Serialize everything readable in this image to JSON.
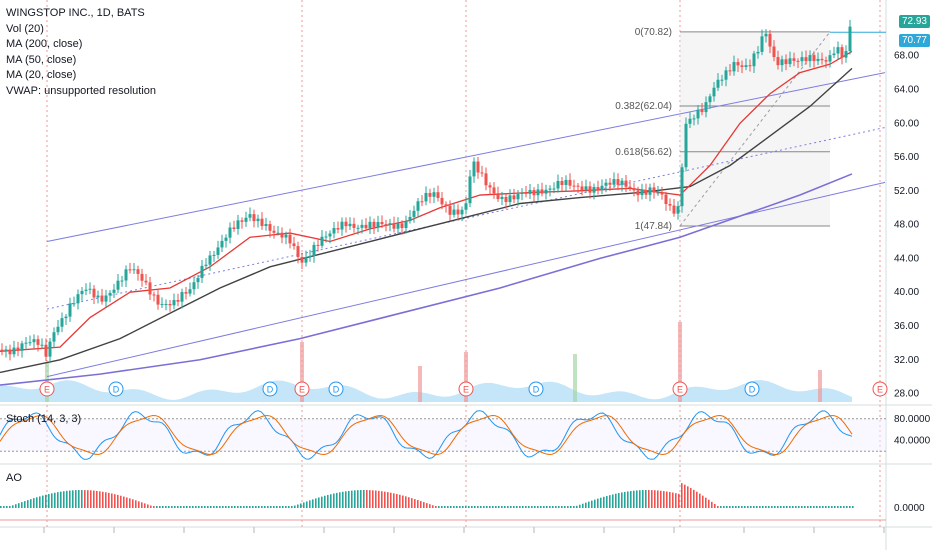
{
  "legend": {
    "symbol": "WINGSTOP INC., 1D, BATS",
    "vol": "Vol (20)",
    "ma200": "MA (200, close)",
    "ma50": "MA (50, close)",
    "ma20": "MA (20, close)",
    "vwap": "VWAP: unsupported resolution"
  },
  "stoch_label": "Stoch (14, 3, 3)",
  "ao_label": "AO",
  "price_tags": {
    "last": "72.93",
    "line": "70.77"
  },
  "colors": {
    "up": "#26a69a",
    "down": "#ef5350",
    "ma20": "#e53935",
    "ma50": "#424242",
    "ma200": "#7b6fd6",
    "channel": "#7d7de0",
    "volume": "#9fd4f3",
    "last_tag": "#26a69a",
    "line_tag": "#2ea8d8"
  },
  "chart_data": {
    "type": "candlestick",
    "price_axis": {
      "ticks": [
        "28.00",
        "32.00",
        "36.00",
        "40.00",
        "44.00",
        "48.00",
        "52.00",
        "56.00",
        "60.00",
        "64.00",
        "68.00"
      ],
      "range": [
        27,
        74
      ]
    },
    "stoch_axis": {
      "ticks": [
        "80.0000",
        "40.0000"
      ]
    },
    "ao_axis": {
      "ticks": [
        "0.0000"
      ]
    },
    "fib_levels": [
      {
        "label": "0(70.82)",
        "value": 70.82
      },
      {
        "label": "0.382(62.04)",
        "value": 62.04
      },
      {
        "label": "0.618(56.62)",
        "value": 56.62
      },
      {
        "label": "1(47.84)",
        "value": 47.84
      }
    ],
    "events": [
      {
        "label": "E",
        "type": "earnings"
      },
      {
        "label": "D",
        "type": "dividend"
      },
      {
        "label": "D",
        "type": "dividend"
      },
      {
        "label": "E",
        "type": "earnings"
      },
      {
        "label": "D",
        "type": "dividend"
      },
      {
        "label": "E",
        "type": "earnings"
      },
      {
        "label": "D",
        "type": "dividend"
      },
      {
        "label": "E",
        "type": "earnings"
      },
      {
        "label": "D",
        "type": "dividend"
      },
      {
        "label": "E",
        "type": "earnings"
      }
    ],
    "price_path": [
      [
        0,
        33.2
      ],
      [
        12,
        33.5
      ],
      [
        25,
        34.0
      ],
      [
        38,
        33.6
      ],
      [
        46,
        32.5
      ],
      [
        55,
        36.0
      ],
      [
        70,
        38.5
      ],
      [
        85,
        40.0
      ],
      [
        100,
        39.2
      ],
      [
        115,
        41.0
      ],
      [
        130,
        42.5
      ],
      [
        145,
        41.0
      ],
      [
        160,
        39.0
      ],
      [
        175,
        38.5
      ],
      [
        190,
        40.0
      ],
      [
        205,
        44.0
      ],
      [
        220,
        45.5
      ],
      [
        235,
        47.5
      ],
      [
        250,
        49.5
      ],
      [
        262,
        48.5
      ],
      [
        275,
        46.5
      ],
      [
        290,
        46.0
      ],
      [
        302,
        44.0
      ],
      [
        315,
        45.5
      ],
      [
        330,
        46.5
      ],
      [
        345,
        48.5
      ],
      [
        360,
        48.0
      ],
      [
        375,
        47.5
      ],
      [
        390,
        48.0
      ],
      [
        405,
        48.5
      ],
      [
        420,
        50.5
      ],
      [
        435,
        51.5
      ],
      [
        450,
        50.0
      ],
      [
        465,
        49.5
      ],
      [
        472,
        55.0
      ],
      [
        485,
        53.0
      ],
      [
        500,
        51.5
      ],
      [
        515,
        51.0
      ],
      [
        530,
        51.5
      ],
      [
        545,
        52.5
      ],
      [
        560,
        53.0
      ],
      [
        575,
        52.0
      ],
      [
        590,
        52.5
      ],
      [
        605,
        53.0
      ],
      [
        620,
        52.5
      ],
      [
        635,
        52.0
      ],
      [
        650,
        52.5
      ],
      [
        660,
        51.5
      ],
      [
        672,
        49.0
      ],
      [
        680,
        50.0
      ],
      [
        684,
        60.0
      ],
      [
        695,
        61.5
      ],
      [
        705,
        62.0
      ],
      [
        715,
        64.0
      ],
      [
        725,
        65.5
      ],
      [
        735,
        67.5
      ],
      [
        748,
        67.0
      ],
      [
        758,
        68.5
      ],
      [
        765,
        70.5
      ],
      [
        775,
        67.0
      ],
      [
        790,
        68.0
      ],
      [
        805,
        67.5
      ],
      [
        818,
        67.0
      ],
      [
        828,
        67.5
      ],
      [
        836,
        69.5
      ],
      [
        845,
        68.0
      ],
      [
        852,
        72.9
      ]
    ],
    "ma20": [
      [
        0,
        33.0
      ],
      [
        60,
        33.5
      ],
      [
        90,
        37.0
      ],
      [
        130,
        40.0
      ],
      [
        170,
        40.5
      ],
      [
        210,
        43.0
      ],
      [
        250,
        46.5
      ],
      [
        290,
        47.0
      ],
      [
        330,
        46.0
      ],
      [
        370,
        47.5
      ],
      [
        410,
        48.5
      ],
      [
        440,
        50.0
      ],
      [
        480,
        51.5
      ],
      [
        530,
        51.8
      ],
      [
        580,
        52.0
      ],
      [
        630,
        52.3
      ],
      [
        680,
        51.5
      ],
      [
        710,
        55.0
      ],
      [
        740,
        60.0
      ],
      [
        770,
        63.5
      ],
      [
        800,
        66.0
      ],
      [
        830,
        67.0
      ],
      [
        852,
        68.5
      ]
    ],
    "ma50": [
      [
        0,
        30.5
      ],
      [
        60,
        32.0
      ],
      [
        120,
        34.5
      ],
      [
        170,
        37.5
      ],
      [
        220,
        40.5
      ],
      [
        270,
        43.0
      ],
      [
        320,
        44.5
      ],
      [
        370,
        46.0
      ],
      [
        420,
        47.5
      ],
      [
        470,
        49.0
      ],
      [
        520,
        50.5
      ],
      [
        580,
        51.2
      ],
      [
        640,
        51.8
      ],
      [
        690,
        52.5
      ],
      [
        730,
        55.0
      ],
      [
        770,
        58.5
      ],
      [
        810,
        62.0
      ],
      [
        852,
        66.5
      ]
    ],
    "ma200": [
      [
        0,
        29.0
      ],
      [
        100,
        30.3
      ],
      [
        200,
        32.0
      ],
      [
        300,
        34.5
      ],
      [
        400,
        37.5
      ],
      [
        500,
        40.5
      ],
      [
        600,
        44.0
      ],
      [
        680,
        46.5
      ],
      [
        740,
        49.0
      ],
      [
        800,
        51.5
      ],
      [
        852,
        54.0
      ]
    ],
    "channel_lines": [
      [
        [
          47,
          46.0
        ],
        [
          885,
          66.0
        ]
      ],
      [
        [
          47,
          30.0
        ],
        [
          885,
          53.0
        ]
      ],
      [
        [
          47,
          38.0
        ],
        [
          885,
          59.5
        ]
      ]
    ]
  }
}
